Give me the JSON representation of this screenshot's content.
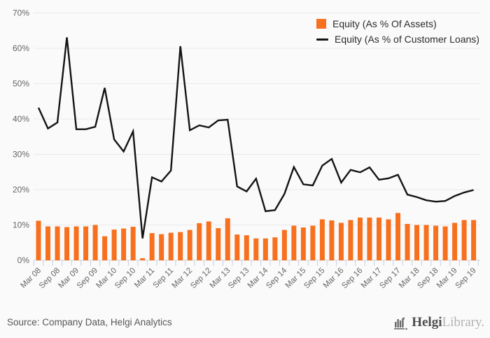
{
  "chart_data": {
    "type": "bar+line",
    "title": "",
    "xlabel": "",
    "ylabel": "",
    "ylim": [
      0,
      70
    ],
    "ytick_step": 10,
    "ytick_suffix": "%",
    "grid": true,
    "legend_position": "top-right-inside",
    "x_axis_label_every": 2,
    "categories": [
      "Mar 08",
      "Jun 08",
      "Sep 08",
      "Dec 08",
      "Mar 09",
      "Jun 09",
      "Sep 09",
      "Dec 09",
      "Mar 10",
      "Jun 10",
      "Sep 10",
      "Dec 10",
      "Mar 11",
      "Jun 11",
      "Sep 11",
      "Dec 11",
      "Mar 12",
      "Jun 12",
      "Sep 12",
      "Dec 12",
      "Mar 13",
      "Jun 13",
      "Sep 13",
      "Dec 13",
      "Mar 14",
      "Jun 14",
      "Sep 14",
      "Dec 14",
      "Mar 15",
      "Jun 15",
      "Sep 15",
      "Dec 15",
      "Mar 16",
      "Jun 16",
      "Sep 16",
      "Dec 16",
      "Mar 17",
      "Jun 17",
      "Sep 17",
      "Dec 17",
      "Mar 18",
      "Jun 18",
      "Sep 18",
      "Dec 18",
      "Mar 19",
      "Jun 19",
      "Sep 19"
    ],
    "series": [
      {
        "name": "Equity (As % Of Assets)",
        "type": "bar",
        "color": "#f7701e",
        "values": [
          11.2,
          9.6,
          9.6,
          9.4,
          9.6,
          9.6,
          10.0,
          6.8,
          8.7,
          9.0,
          9.5,
          0.6,
          7.7,
          7.4,
          7.8,
          8.0,
          8.6,
          10.5,
          11.0,
          9.1,
          11.9,
          7.3,
          7.1,
          6.2,
          6.2,
          6.5,
          8.6,
          9.8,
          9.3,
          9.8,
          11.6,
          11.3,
          10.6,
          11.4,
          12.1,
          12.1,
          12.1,
          11.6,
          13.4,
          10.3,
          10.0,
          10.0,
          9.8,
          9.6,
          10.6,
          11.4,
          11.4
        ]
      },
      {
        "name": "Equity (As % of Customer Loans)",
        "type": "line",
        "color": "#141414",
        "values": [
          43.2,
          37.3,
          39.0,
          63.1,
          37.1,
          37.1,
          37.8,
          48.8,
          34.2,
          30.8,
          36.5,
          6.2,
          23.5,
          22.3,
          25.4,
          60.6,
          36.8,
          38.2,
          37.6,
          39.6,
          39.8,
          20.9,
          19.5,
          23.1,
          13.9,
          14.2,
          18.8,
          26.4,
          21.5,
          21.2,
          26.8,
          28.7,
          22.0,
          25.6,
          24.9,
          26.3,
          22.8,
          23.2,
          24.2,
          18.6,
          17.9,
          17.0,
          16.6,
          16.8,
          18.2,
          19.2,
          19.9
        ]
      }
    ],
    "ytick_labels": [
      "0%",
      "10%",
      "20%",
      "30%",
      "40%",
      "50%",
      "60%",
      "70%"
    ]
  },
  "footer": {
    "source": "Source: Company Data, Helgi Analytics",
    "logo": {
      "part1": "Helgi",
      "part2": "Library",
      "suffix": "."
    }
  }
}
